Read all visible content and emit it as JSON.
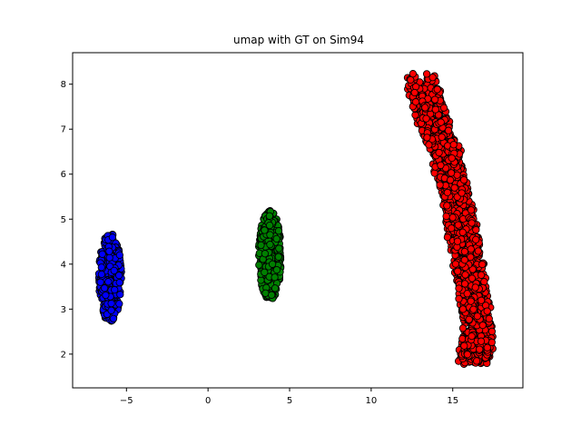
{
  "chart_data": {
    "type": "scatter",
    "title": "umap with GT on Sim94",
    "xlabel": "",
    "ylabel": "",
    "xlim": [
      -8.3,
      19.3
    ],
    "ylim": [
      1.25,
      8.7
    ],
    "x_ticks": [
      -5,
      0,
      5,
      10,
      15
    ],
    "y_ticks": [
      2,
      3,
      4,
      5,
      6,
      7,
      8
    ],
    "x_tick_labels": [
      "−5",
      "0",
      "5",
      "10",
      "15"
    ],
    "y_tick_labels": [
      "2",
      "3",
      "4",
      "5",
      "6",
      "7",
      "8"
    ],
    "grid": false,
    "series": [
      {
        "color": "#0000ff",
        "clusters": [
          {
            "cx": -6.0,
            "cy": 3.7,
            "sx": 0.45,
            "sy": 0.45,
            "n": 420
          }
        ]
      },
      {
        "color": "#008000",
        "clusters": [
          {
            "cx": 3.8,
            "cy": 4.2,
            "sx": 0.45,
            "sy": 0.45,
            "n": 420
          }
        ]
      },
      {
        "color": "#ff0000",
        "clusters": [
          {
            "path": [
              [
                13.0,
                8.1
              ],
              [
                13.8,
                7.2
              ],
              [
                14.7,
                6.3
              ],
              [
                15.3,
                5.3
              ],
              [
                15.8,
                4.3
              ],
              [
                16.3,
                3.3
              ],
              [
                16.6,
                2.3
              ],
              [
                16.2,
                1.9
              ]
            ],
            "width": 0.9,
            "n": 1600
          }
        ]
      }
    ]
  }
}
